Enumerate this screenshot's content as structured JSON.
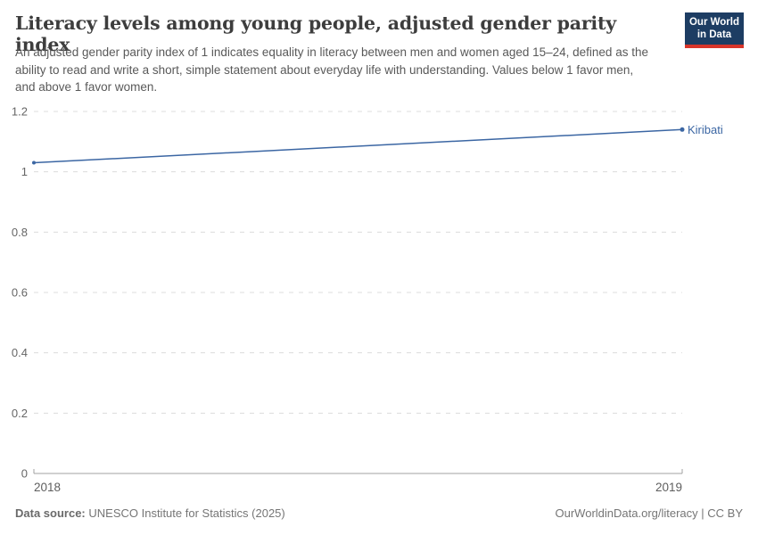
{
  "header": {
    "title": "Literacy levels among young people, adjusted gender parity index",
    "subtitle": "An adjusted gender parity index of 1 indicates equality in literacy between men and women aged 15–24, defined as the ability to read and write a short, simple statement about everyday life with understanding. Values below 1 favor men, and above 1 favor women.",
    "logo": {
      "line1": "Our World",
      "line2": "in Data",
      "bg_color": "#1d3d63",
      "stripe_color": "#d8352a"
    }
  },
  "chart_data": {
    "type": "line",
    "title": "Literacy levels among young people, adjusted gender parity index",
    "x": [
      2018,
      2019
    ],
    "x_tick_labels": [
      "2018",
      "2019"
    ],
    "series": [
      {
        "name": "Kiribati",
        "values": [
          1.03,
          1.14
        ],
        "color": "#3b66a3"
      }
    ],
    "xlabel": "",
    "ylabel": "",
    "xlim": [
      2018,
      2019
    ],
    "ylim": [
      0,
      1.2
    ],
    "y_ticks": [
      {
        "value": 0,
        "label": "0"
      },
      {
        "value": 0.2,
        "label": "0.2"
      },
      {
        "value": 0.4,
        "label": "0.4"
      },
      {
        "value": 0.6,
        "label": "0.6"
      },
      {
        "value": 0.8,
        "label": "0.8"
      },
      {
        "value": 1,
        "label": "1"
      },
      {
        "value": 1.2,
        "label": "1.2"
      }
    ],
    "grid": "horizontal-dashed",
    "legend": "end-of-line-label"
  },
  "footer": {
    "data_source_label": "Data source:",
    "data_source_value": "UNESCO Institute for Statistics (2025)",
    "credit": "OurWorldinData.org/literacy | CC BY"
  },
  "colors": {
    "line": "#3b66a3",
    "grid": "#dcdcdc",
    "axis": "#a0a0a0",
    "y_tick_label": "#666666",
    "x_tick_label": "#5e5e5e",
    "entity_label": "#3b66a3"
  }
}
